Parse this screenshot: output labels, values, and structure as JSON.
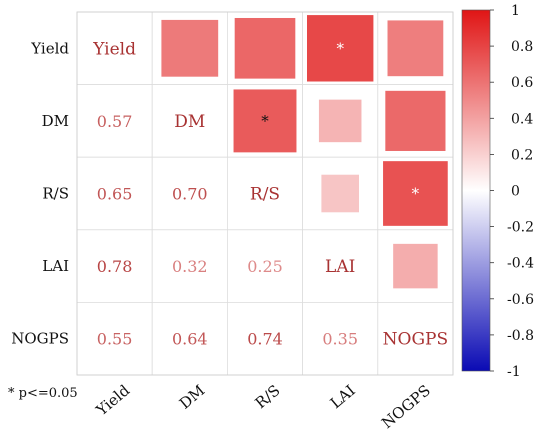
{
  "chart_data": {
    "type": "heatmap",
    "variables": [
      "Yield",
      "DM",
      "R/S",
      "LAI",
      "NOGPS"
    ],
    "lower_triangle_values": [
      [
        null,
        null,
        null,
        null,
        null
      ],
      [
        0.57,
        null,
        null,
        null,
        null
      ],
      [
        0.65,
        0.7,
        null,
        null,
        null
      ],
      [
        0.78,
        0.32,
        0.25,
        null,
        null
      ],
      [
        0.55,
        0.64,
        0.74,
        0.35,
        null
      ]
    ],
    "significance_marker": "*",
    "significant_pairs": [
      [
        "Yield",
        "LAI"
      ],
      [
        "DM",
        "R/S"
      ],
      [
        "R/S",
        "NOGPS"
      ]
    ],
    "color_scale": {
      "range": [
        -1,
        1
      ],
      "ticks": [
        "1",
        "0.8",
        "0.6",
        "0.4",
        "0.2",
        "0",
        "-0.2",
        "-0.4",
        "-0.6",
        "-0.8",
        "-1"
      ],
      "low_color": "#0a0ab4",
      "mid_color": "#ffffff",
      "high_color": "#e01515"
    },
    "legend_position": "right",
    "footnote": "* p<=0.05"
  }
}
